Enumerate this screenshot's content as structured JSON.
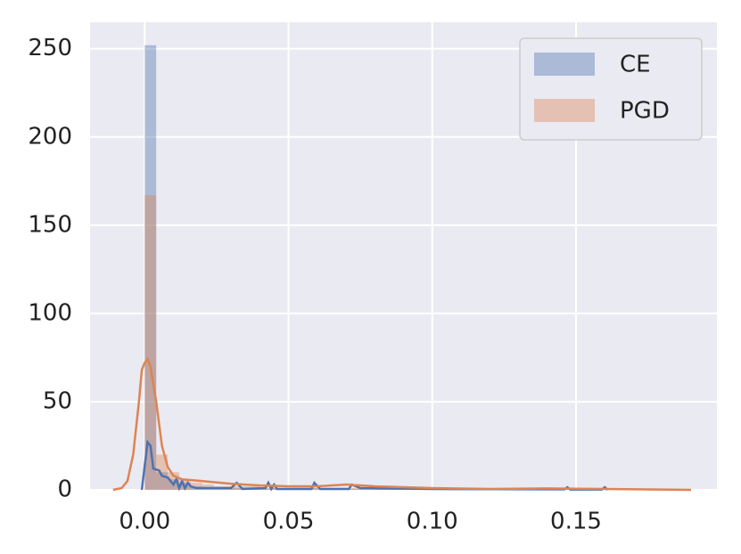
{
  "chart_data": {
    "type": "histogram",
    "xlim": [
      -0.019,
      0.199
    ],
    "ylim": [
      0,
      265
    ],
    "xticks": [
      {
        "value": 0,
        "label": "0.00"
      },
      {
        "value": 0.05,
        "label": "0.05"
      },
      {
        "value": 0.1,
        "label": "0.10"
      },
      {
        "value": 0.15,
        "label": "0.15"
      }
    ],
    "yticks": [
      0,
      50,
      100,
      150,
      200,
      250
    ],
    "grid": true,
    "legend": "upper right",
    "series": [
      {
        "name": "CE",
        "color": "#4c72b0",
        "bins": [
          0,
          0.004,
          0.008,
          0.012,
          0.016,
          0.02,
          0.024,
          0.028,
          0.032,
          0.036,
          0.04,
          0.044,
          0.048,
          0.052,
          0.056,
          0.06,
          0.064,
          0.068,
          0.072,
          0.076,
          0.08,
          0.084,
          0.088,
          0.092,
          0.096,
          0.1,
          0.104,
          0.108,
          0.112,
          0.116,
          0.12,
          0.124,
          0.128,
          0.132,
          0.136,
          0.14,
          0.144,
          0.148,
          0.152,
          0.156,
          0.16
        ],
        "values": [
          252,
          10,
          6,
          4,
          2,
          1,
          1,
          1,
          1,
          1,
          0.5,
          1,
          1,
          0.5,
          1,
          0.5,
          0.5,
          0.5,
          0.5,
          0.3,
          0.3,
          0.3,
          0.2,
          0.2,
          0.2,
          0.2,
          0.2,
          0.2,
          0.2,
          0.2,
          0.2,
          0.2,
          0.2,
          0.2,
          0.2,
          0.2,
          0.2,
          0.2,
          0.2,
          0.2
        ],
        "kde_x": [
          -0.001,
          0.001,
          0.002,
          0.003,
          0.005,
          0.006,
          0.008,
          0.01,
          0.011,
          0.012,
          0.013,
          0.014,
          0.015,
          0.016,
          0.018,
          0.022,
          0.03,
          0.032,
          0.034,
          0.042,
          0.043,
          0.044,
          0.045,
          0.046,
          0.058,
          0.059,
          0.061,
          0.071,
          0.072,
          0.075,
          0.1,
          0.146,
          0.147,
          0.148,
          0.159,
          0.16,
          0.161
        ],
        "kde_y": [
          0,
          27,
          25,
          12,
          11,
          8,
          7,
          3,
          6,
          1,
          5,
          1,
          4,
          2,
          1,
          1,
          1,
          4,
          0.5,
          1,
          4,
          0.5,
          3,
          0.5,
          0.5,
          4,
          0.5,
          0.5,
          3,
          1,
          0.5,
          0.3,
          1.5,
          0.2,
          0.2,
          1.5,
          0
        ]
      },
      {
        "name": "PGD",
        "color": "#dd8452",
        "bins": [
          0,
          0.004,
          0.008,
          0.012,
          0.016,
          0.02,
          0.024,
          0.028,
          0.032,
          0.036,
          0.04,
          0.044,
          0.048,
          0.052,
          0.056,
          0.06,
          0.064,
          0.068,
          0.072,
          0.076,
          0.08,
          0.084,
          0.088,
          0.092,
          0.096,
          0.1,
          0.104,
          0.108,
          0.112,
          0.116,
          0.12,
          0.124,
          0.128,
          0.132,
          0.136,
          0.14,
          0.144,
          0.148,
          0.152,
          0.156,
          0.16
        ],
        "values": [
          167,
          20,
          10,
          6,
          4,
          3,
          2,
          2,
          2,
          2,
          1,
          1,
          1,
          1,
          1,
          1,
          1,
          1,
          1,
          0.5,
          0.5,
          0.5,
          0.5,
          0.5,
          0.5,
          0.5,
          0.5,
          0.5,
          0.5,
          0.5,
          0.5,
          0.5,
          0.5,
          0.5,
          0.5,
          0.5,
          0.5,
          0.5,
          0.5,
          0.5
        ],
        "kde_x": [
          -0.011,
          -0.008,
          -0.006,
          -0.004,
          -0.002,
          -0.001,
          0,
          0.001,
          0.002,
          0.004,
          0.006,
          0.008,
          0.01,
          0.013,
          0.02,
          0.03,
          0.04,
          0.05,
          0.06,
          0.07,
          0.08,
          0.09,
          0.1,
          0.12,
          0.14,
          0.16,
          0.19
        ],
        "kde_y": [
          0,
          1,
          5,
          20,
          50,
          68,
          72,
          74,
          70,
          50,
          25,
          13,
          8,
          6,
          5,
          3.5,
          2.5,
          2,
          2,
          3,
          2,
          1.5,
          1,
          0.5,
          0.8,
          0.5,
          0
        ]
      }
    ]
  }
}
